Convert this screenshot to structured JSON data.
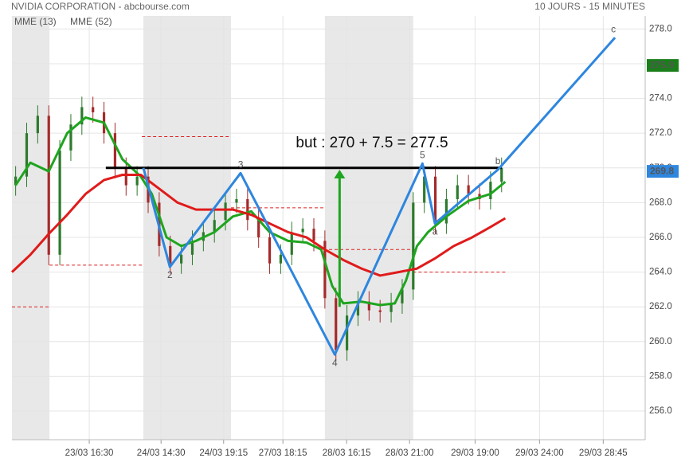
{
  "chart_data": {
    "type": "candlestick",
    "title": "NVIDIA CORPORATION - abcbourse.com",
    "subtitle": "10 JOURS - 15 MINUTES",
    "xlim": [
      0,
      172
    ],
    "ylim": [
      254.35,
      278.75
    ],
    "yticks": [
      {
        "value": 256,
        "label": "256.0"
      },
      {
        "value": 258,
        "label": "258.0"
      },
      {
        "value": 260,
        "label": "260.0"
      },
      {
        "value": 262,
        "label": "262.0"
      },
      {
        "value": 264,
        "label": "264.0"
      },
      {
        "value": 266,
        "label": "266.0"
      },
      {
        "value": 268,
        "label": "268.0"
      },
      {
        "value": 270,
        "label": "270.0"
      },
      {
        "value": 272,
        "label": "272.0"
      },
      {
        "value": 274,
        "label": "274.0"
      },
      {
        "value": 276,
        "label": "276.0"
      },
      {
        "value": 278,
        "label": "278.0"
      }
    ],
    "xticks": [
      {
        "value": 21,
        "label": "23/03 16:30"
      },
      {
        "value": 40.5,
        "label": "24/03 14:30"
      },
      {
        "value": 57.5,
        "label": "24/03 19:15"
      },
      {
        "value": 73.6,
        "label": "27/03 18:15"
      },
      {
        "value": 90.9,
        "label": "28/03 16:15"
      },
      {
        "value": 108,
        "label": "28/03 21:00"
      },
      {
        "value": 125.8,
        "label": "29/03 19:00"
      },
      {
        "value": 143.3,
        "label": "29/03 24:00"
      },
      {
        "value": 160.6,
        "label": "29/03 28:45"
      }
    ],
    "grid": true,
    "up_color": "#2d7a2d",
    "down_color": "#a52a2a",
    "sessions": [
      [
        0,
        10.2
      ],
      [
        35.7,
        59.5
      ],
      [
        85,
        109
      ]
    ],
    "candles": {
      "x": [
        1,
        4,
        7,
        10,
        13,
        16,
        19,
        22,
        25,
        28,
        31,
        34,
        37,
        40,
        43,
        46,
        49,
        52,
        55,
        58,
        61,
        64,
        67,
        70,
        73,
        76,
        79,
        82,
        85,
        88,
        91,
        94,
        97,
        100,
        103,
        106,
        109,
        112,
        115,
        118,
        121,
        124,
        127,
        130,
        133
      ],
      "open": [
        269,
        269.5,
        272,
        273,
        265,
        271,
        272.5,
        273.5,
        273.2,
        272,
        270,
        269,
        269.5,
        268,
        265.5,
        264.5,
        265,
        265.8,
        266.3,
        267,
        268,
        268.2,
        267,
        266,
        264.5,
        265,
        266.3,
        266.5,
        265.8,
        262.5,
        259.5,
        261.5,
        262.3,
        261.8,
        261.7,
        262.2,
        263,
        268,
        269.5,
        266.8,
        268.2,
        269,
        268.5,
        268.2,
        269.2
      ],
      "high": [
        270.1,
        272.6,
        273.6,
        273.6,
        271.6,
        273.1,
        274.1,
        274.1,
        273.8,
        272.6,
        270.6,
        270.1,
        270.1,
        268.6,
        266.1,
        265.6,
        266.4,
        266.9,
        267.6,
        268.6,
        268.8,
        268.8,
        267.6,
        266.6,
        265.6,
        266.9,
        267.1,
        267.1,
        266.4,
        263.1,
        262.1,
        262.9,
        262.9,
        262.4,
        262.8,
        263.6,
        268.6,
        270.1,
        270.1,
        268.8,
        269.6,
        269.6,
        269.1,
        269.8,
        270.6
      ],
      "low": [
        268.4,
        268.9,
        271.4,
        264.4,
        264.4,
        270.4,
        271.9,
        272.6,
        271.4,
        269.4,
        268.4,
        268.4,
        267.4,
        264.9,
        263.9,
        263.9,
        264.4,
        265.2,
        265.7,
        266.4,
        267.4,
        266.4,
        265.4,
        263.9,
        263.9,
        264.4,
        265.7,
        265.2,
        261.9,
        258.9,
        258.9,
        260.9,
        261.2,
        261.1,
        261.1,
        261.6,
        262.4,
        267.4,
        266.2,
        266.2,
        267.6,
        267.9,
        267.6,
        267.6,
        268.6
      ],
      "close": [
        269.5,
        272,
        273,
        265,
        271,
        272.5,
        273.5,
        273.2,
        272,
        270,
        269,
        269.5,
        268,
        265.5,
        264.5,
        265,
        265.8,
        266.3,
        267,
        268,
        268.2,
        267,
        266,
        264.5,
        265,
        266.3,
        266.5,
        265.8,
        262.5,
        259.5,
        261.5,
        262.3,
        261.8,
        261.7,
        262.2,
        263,
        268,
        269.5,
        266.8,
        268.2,
        269,
        268.5,
        268.2,
        269.2,
        270
      ]
    },
    "series": [
      {
        "name": "MME (13)",
        "color": "#1fa51f",
        "x": [
          1,
          5,
          10,
          15,
          20,
          25,
          30,
          35,
          38,
          42,
          46,
          50,
          55,
          60,
          65,
          70,
          75,
          80,
          84,
          87,
          90,
          95,
          100,
          104,
          107,
          110,
          113,
          118,
          124,
          130,
          134
        ],
        "values": [
          269,
          270.3,
          269.8,
          272,
          272.9,
          272.6,
          270.5,
          269.5,
          268.5,
          266,
          265.5,
          265.8,
          266.3,
          267.2,
          267.5,
          266.3,
          265.8,
          265.7,
          265.3,
          263.2,
          262.2,
          262.3,
          262.1,
          262.2,
          263.5,
          265.5,
          266.3,
          267.2,
          268.1,
          268.5,
          269.2
        ]
      },
      {
        "name": "MME (52)",
        "color": "#e01b1b",
        "x": [
          0,
          5,
          10,
          15,
          20,
          25,
          30,
          35,
          40,
          45,
          50,
          55,
          60,
          65,
          70,
          75,
          80,
          85,
          90,
          95,
          100,
          105,
          110,
          115,
          120,
          125,
          130,
          134
        ],
        "values": [
          264,
          265,
          266.2,
          267.3,
          268.5,
          269.3,
          269.6,
          269.6,
          268.8,
          268,
          267.6,
          267.6,
          267.6,
          267.3,
          266.8,
          266.3,
          266,
          265.3,
          264.7,
          264.2,
          263.8,
          264,
          264.2,
          264.8,
          265.5,
          266,
          266.6,
          267.1
        ]
      }
    ],
    "wave": {
      "color": "#2e86de",
      "x": [
        35.7,
        42.9,
        62.1,
        87.7,
        111.5,
        114.9,
        132,
        163.8
      ],
      "values": [
        270,
        264.3,
        269.7,
        259.25,
        270.25,
        266.8,
        269.9,
        277.5
      ],
      "point_labels": [
        null,
        "2",
        "3",
        "4",
        "5",
        "a",
        "b",
        "c"
      ]
    },
    "neckline": {
      "value": 270,
      "x": [
        25.5,
        133
      ],
      "color": "#000000"
    },
    "target_arrow": {
      "x": 89,
      "from": 262,
      "to": 269.9,
      "color": "#1fa51f"
    },
    "annotation": "but : 270 + 7.5 = 277.5",
    "levels": [
      {
        "value": 262,
        "x": [
          0,
          10.2
        ]
      },
      {
        "value": 264.4,
        "x": [
          10.2,
          35.3
        ]
      },
      {
        "value": 271.8,
        "x": [
          35.3,
          59.5
        ]
      },
      {
        "value": 267.7,
        "x": [
          59.5,
          84.6
        ]
      },
      {
        "value": 265.3,
        "x": [
          84.6,
          108.9
        ]
      },
      {
        "value": 264,
        "x": [
          108.9,
          134
        ]
      }
    ],
    "price_tags": [
      {
        "value": 275.9,
        "color": "#1a7f1a"
      },
      {
        "value": 269.8,
        "color": "#2e86de"
      }
    ]
  }
}
